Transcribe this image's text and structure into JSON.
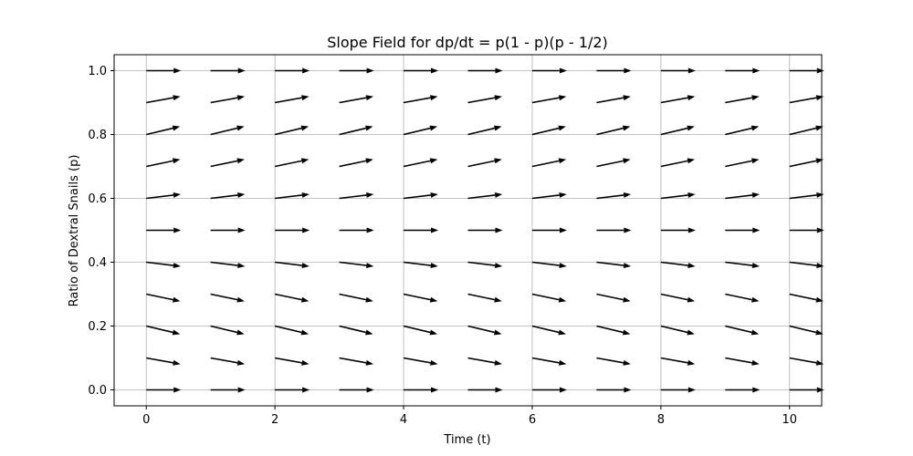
{
  "chart_data": {
    "type": "quiver",
    "title": "Slope Field for dp/dt = p(1 - p)(p - 1/2)",
    "xlabel": "Time (t)",
    "ylabel": "Ratio of Dextral Snails (p)",
    "xlim": [
      -0.5,
      10.5
    ],
    "ylim": [
      -0.05,
      1.05
    ],
    "xticks": [
      0,
      2,
      4,
      6,
      8,
      10
    ],
    "xtick_labels": [
      "0",
      "2",
      "4",
      "6",
      "8",
      "10"
    ],
    "yticks": [
      0.0,
      0.2,
      0.4,
      0.6,
      0.8,
      1.0
    ],
    "ytick_labels": [
      "0.0",
      "0.2",
      "0.4",
      "0.6",
      "0.8",
      "1.0"
    ],
    "grid": true,
    "t_values": [
      0,
      1,
      2,
      3,
      4,
      5,
      6,
      7,
      8,
      9,
      10
    ],
    "p_values": [
      0.0,
      0.1,
      0.2,
      0.3,
      0.4,
      0.5,
      0.6,
      0.7,
      0.8,
      0.9,
      1.0
    ],
    "arrow_color": "#000000"
  }
}
